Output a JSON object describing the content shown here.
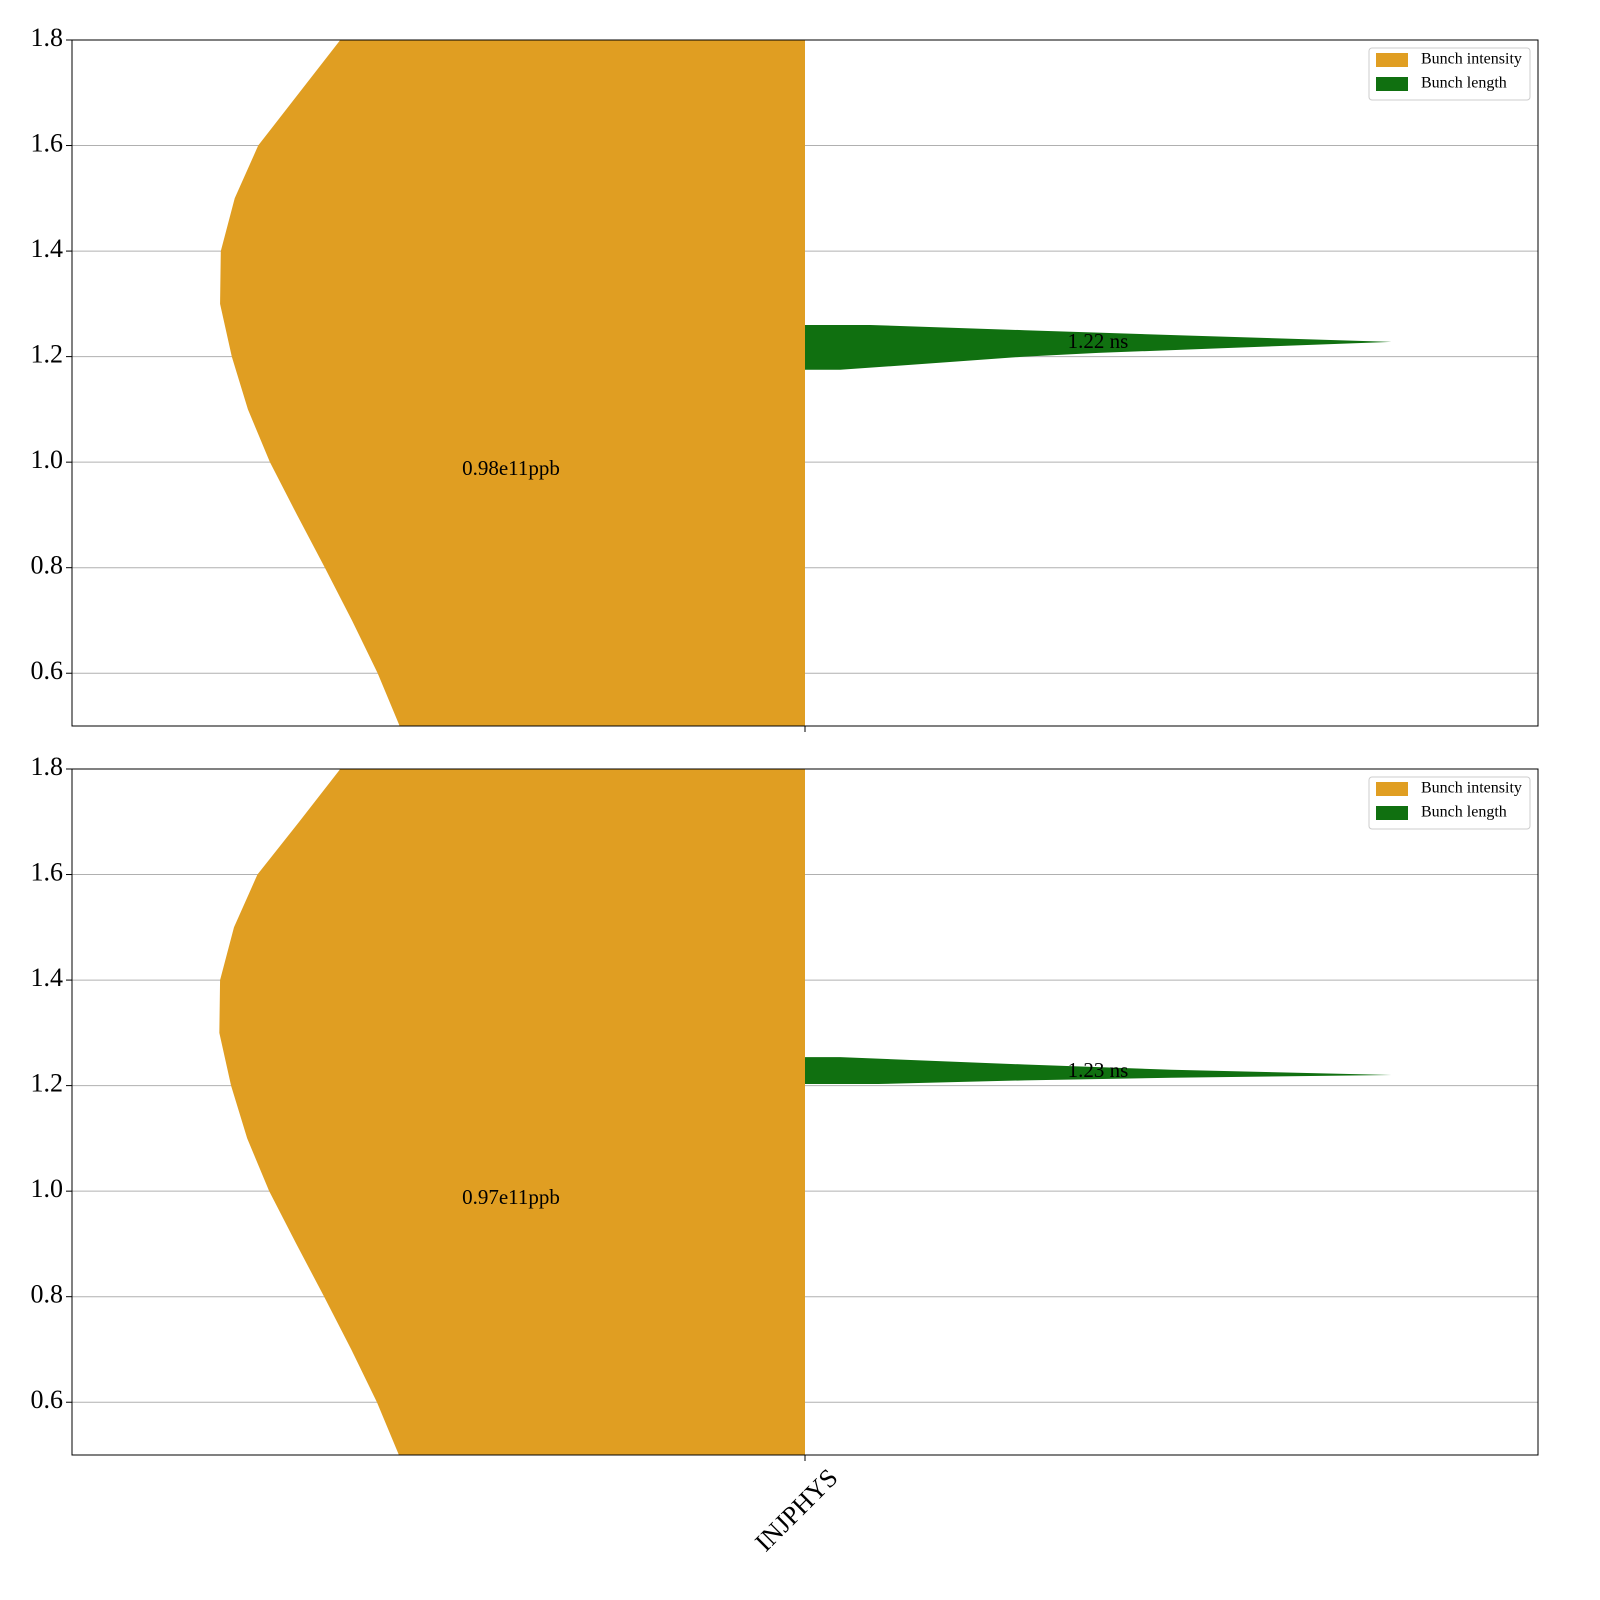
{
  "chart_data": [
    {
      "type": "violin",
      "categories": [
        null
      ],
      "ylim": [
        0.5,
        1.8
      ],
      "yticks": [
        0.6,
        0.8,
        {
          "value": 1,
          "label": "1.0"
        },
        1.2,
        1.4,
        1.6,
        1.8
      ],
      "grid": true,
      "legend": "upper right",
      "series": [
        {
          "name": "Bunch intensity",
          "color": "#e09e22",
          "side": "left",
          "y": [
            0.5,
            0.6,
            0.7,
            0.8,
            0.9,
            1.0,
            1.1,
            1.2,
            1.3,
            1.4,
            1.5,
            1.6,
            1.7,
            1.8
          ],
          "width": [
            0.553,
            0.583,
            0.618,
            0.655,
            0.693,
            0.73,
            0.76,
            0.782,
            0.798,
            0.797,
            0.778,
            0.746,
            0.69,
            0.634
          ]
        },
        {
          "name": "Bunch length",
          "color": "#107010",
          "side": "right",
          "y": [
            1.175,
            1.19,
            1.2,
            1.207,
            1.215,
            1.228,
            1.24,
            1.25,
            1.26
          ],
          "width": [
            0.048,
            0.2,
            0.3,
            0.4,
            0.55,
            0.8,
            0.52,
            0.3,
            0.089
          ]
        }
      ],
      "annotations": [
        "0.98e11ppb",
        "1.22 ns"
      ]
    },
    {
      "type": "violin",
      "categories": [
        "INJPHYS"
      ],
      "ylim": [
        0.5,
        1.8
      ],
      "yticks": [
        0.6,
        0.8,
        {
          "value": 1,
          "label": "1.0"
        },
        1.2,
        1.4,
        1.6,
        1.8
      ],
      "grid": true,
      "legend": "upper right",
      "series": [
        {
          "name": "Bunch intensity",
          "color": "#e09e22",
          "side": "left",
          "y": [
            0.5,
            0.6,
            0.7,
            0.8,
            0.9,
            1.0,
            1.1,
            1.2,
            1.3,
            1.4,
            1.5,
            1.6,
            1.7,
            1.8
          ],
          "width": [
            0.554,
            0.584,
            0.619,
            0.656,
            0.694,
            0.731,
            0.761,
            0.783,
            0.799,
            0.798,
            0.779,
            0.747,
            0.69,
            0.634
          ]
        },
        {
          "name": "Bunch length",
          "color": "#107010",
          "side": "right",
          "y": [
            1.203,
            1.21,
            1.215,
            1.22,
            1.23,
            1.24,
            1.254
          ],
          "width": [
            0.1,
            0.3,
            0.5,
            0.8,
            0.5,
            0.3,
            0.048
          ]
        }
      ],
      "annotations": [
        "0.97e11ppb",
        "1.23 ns"
      ]
    }
  ]
}
